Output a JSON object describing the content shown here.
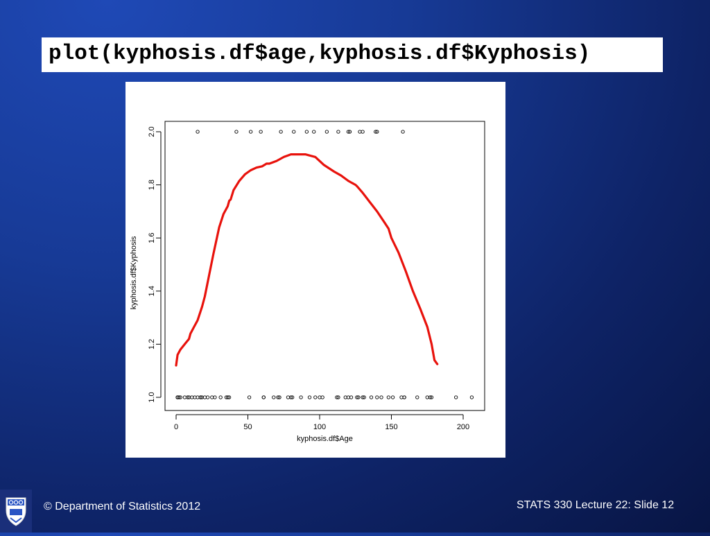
{
  "slide": {
    "code_title": "plot(kyphosis.df$age,kyphosis.df$Kyphosis)",
    "footer_left": "© Department of Statistics 2012",
    "footer_right": "STATS 330 Lecture 22: Slide 12",
    "logo_icon": "university-crest-icon",
    "background_color": "#173a96",
    "curve_color": "#e8120c"
  },
  "chart_data": {
    "type": "scatter",
    "title": "",
    "xlabel": "kyphosis.df$Age",
    "ylabel": "kyphosis.df$Kyphosis",
    "xlim": [
      0,
      206
    ],
    "ylim": [
      1.0,
      2.0
    ],
    "x_ticks": [
      "0",
      "50",
      "100",
      "150",
      "200"
    ],
    "y_ticks": [
      "1.0",
      "1.2",
      "1.4",
      "1.6",
      "1.8",
      "2.0"
    ],
    "grid": false,
    "series": [
      {
        "kind": "points",
        "x": [
          15,
          42,
          52,
          59,
          73,
          82,
          91,
          96,
          105,
          113,
          120,
          121,
          128,
          130,
          139,
          140,
          158,
          1,
          1,
          1,
          2,
          3,
          6,
          8,
          9,
          11,
          13,
          15,
          17,
          17,
          18,
          20,
          22,
          25,
          27,
          31,
          35,
          36,
          37,
          51,
          61,
          61,
          68,
          71,
          72,
          78,
          80,
          81,
          87,
          93,
          97,
          100,
          102,
          112,
          113,
          118,
          120,
          122,
          126,
          127,
          130,
          131,
          136,
          140,
          143,
          148,
          151,
          157,
          159,
          159,
          168,
          175,
          177,
          178,
          195,
          206
        ],
        "y": [
          2,
          2,
          2,
          2,
          2,
          2,
          2,
          2,
          2,
          2,
          2,
          2,
          2,
          2,
          2,
          2,
          2,
          1,
          1,
          1,
          1,
          1,
          1,
          1,
          1,
          1,
          1,
          1,
          1,
          1,
          1,
          1,
          1,
          1,
          1,
          1,
          1,
          1,
          1,
          1,
          1,
          1,
          1,
          1,
          1,
          1,
          1,
          1,
          1,
          1,
          1,
          1,
          1,
          1,
          1,
          1,
          1,
          1,
          1,
          1,
          1,
          1,
          1,
          1,
          1,
          1,
          1,
          1,
          1,
          1,
          1,
          1,
          1,
          1,
          1,
          1
        ]
      },
      {
        "kind": "smooth-line",
        "x": [
          0,
          1,
          3,
          6,
          9,
          10,
          12,
          15,
          18,
          20,
          23,
          26,
          30,
          33,
          36,
          37,
          38,
          40,
          44,
          48,
          52,
          56,
          60,
          63,
          65,
          70,
          75,
          80,
          90,
          97,
          103,
          110,
          115,
          120,
          125,
          126,
          130,
          135,
          140,
          145,
          148,
          150,
          155,
          160,
          165,
          170,
          175,
          178,
          180,
          182
        ],
        "y": [
          1.12,
          1.16,
          1.18,
          1.2,
          1.22,
          1.24,
          1.26,
          1.29,
          1.34,
          1.38,
          1.46,
          1.54,
          1.64,
          1.69,
          1.72,
          1.74,
          1.745,
          1.78,
          1.815,
          1.84,
          1.855,
          1.865,
          1.87,
          1.88,
          1.88,
          1.89,
          1.905,
          1.915,
          1.915,
          1.905,
          1.875,
          1.85,
          1.835,
          1.815,
          1.8,
          1.795,
          1.77,
          1.735,
          1.7,
          1.66,
          1.635,
          1.6,
          1.545,
          1.475,
          1.4,
          1.335,
          1.265,
          1.2,
          1.14,
          1.125
        ]
      }
    ]
  }
}
